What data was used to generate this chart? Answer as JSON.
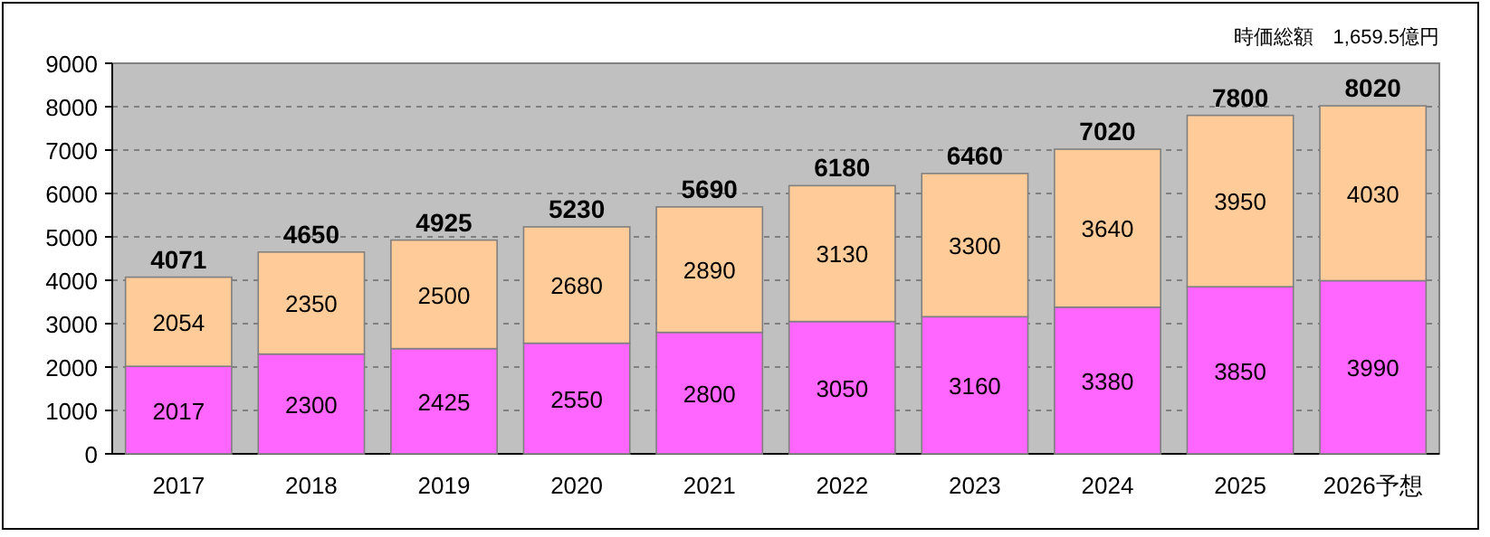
{
  "chart_data": {
    "type": "bar",
    "stacked": true,
    "categories": [
      "2017",
      "2018",
      "2019",
      "2020",
      "2021",
      "2022",
      "2023",
      "2024",
      "2025",
      "2026予想"
    ],
    "series": [
      {
        "color": "#ff66ff",
        "values": [
          2017,
          2300,
          2425,
          2550,
          2800,
          3050,
          3160,
          3380,
          3850,
          3990
        ]
      },
      {
        "color": "#ffcc99",
        "values": [
          2054,
          2350,
          2500,
          2680,
          2890,
          3130,
          3300,
          3640,
          3950,
          4030
        ]
      }
    ],
    "totals": [
      "4071",
      "4650",
      "4925",
      "5230",
      "5690",
      "6180",
      "6460",
      "7020",
      "7800",
      "8020"
    ],
    "data_labels": true,
    "ylim": [
      0,
      9000
    ],
    "yticks": [
      0,
      1000,
      2000,
      3000,
      4000,
      5000,
      6000,
      7000,
      8000,
      9000
    ],
    "grid": "y",
    "annotations": [
      "時価総額　1,659.5億円"
    ]
  }
}
